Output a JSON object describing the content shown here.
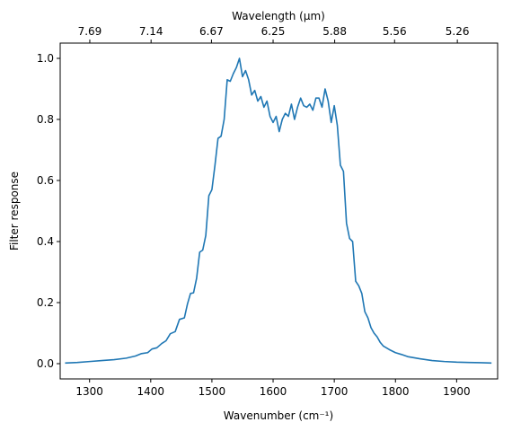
{
  "chart_data": {
    "type": "line",
    "title": "",
    "xlabel": "Wavenumber (cm⁻¹)",
    "ylabel": "Filter response",
    "top_xlabel": "Wavelength (μm)",
    "xlim": [
      1252,
      1967
    ],
    "ylim": [
      -0.05,
      1.05
    ],
    "grid": false,
    "legend": "none",
    "x_ticks": [
      1300,
      1400,
      1500,
      1600,
      1700,
      1800,
      1900
    ],
    "x_tick_labels": [
      "1300",
      "1400",
      "1500",
      "1600",
      "1700",
      "1800",
      "1900"
    ],
    "y_ticks": [
      0.0,
      0.2,
      0.4,
      0.6,
      0.8,
      1.0
    ],
    "y_tick_labels": [
      "0.0",
      "0.2",
      "0.4",
      "0.6",
      "0.8",
      "1.0"
    ],
    "top_ticks_wavelength": [
      7.69,
      7.14,
      6.67,
      6.25,
      5.88,
      5.56,
      5.26
    ],
    "top_tick_labels": [
      "7.69",
      "7.14",
      "6.67",
      "6.25",
      "5.88",
      "5.56",
      "5.26"
    ],
    "line_color": "#1f77b4",
    "series": [
      {
        "x": [
          1260,
          1280,
          1300,
          1320,
          1340,
          1360,
          1375,
          1385,
          1395,
          1402,
          1410,
          1418,
          1425,
          1432,
          1440,
          1447,
          1455,
          1460,
          1465,
          1470,
          1475,
          1480,
          1485,
          1490,
          1495,
          1500,
          1505,
          1510,
          1515,
          1520,
          1525,
          1530,
          1535,
          1540,
          1545,
          1550,
          1555,
          1560,
          1565,
          1570,
          1575,
          1580,
          1585,
          1590,
          1595,
          1600,
          1605,
          1610,
          1615,
          1620,
          1625,
          1630,
          1635,
          1640,
          1645,
          1650,
          1655,
          1660,
          1665,
          1670,
          1675,
          1680,
          1685,
          1690,
          1695,
          1700,
          1705,
          1710,
          1715,
          1720,
          1725,
          1730,
          1735,
          1740,
          1745,
          1750,
          1755,
          1760,
          1765,
          1770,
          1775,
          1780,
          1790,
          1800,
          1810,
          1820,
          1840,
          1860,
          1880,
          1900,
          1920,
          1940,
          1957
        ],
        "y": [
          0.002,
          0.004,
          0.007,
          0.01,
          0.013,
          0.018,
          0.025,
          0.033,
          0.036,
          0.048,
          0.052,
          0.066,
          0.075,
          0.098,
          0.105,
          0.145,
          0.15,
          0.195,
          0.23,
          0.232,
          0.28,
          0.365,
          0.372,
          0.42,
          0.55,
          0.57,
          0.65,
          0.738,
          0.745,
          0.8,
          0.93,
          0.925,
          0.95,
          0.97,
          1.0,
          0.94,
          0.96,
          0.93,
          0.88,
          0.895,
          0.86,
          0.875,
          0.84,
          0.86,
          0.81,
          0.79,
          0.81,
          0.76,
          0.8,
          0.82,
          0.81,
          0.85,
          0.8,
          0.84,
          0.87,
          0.845,
          0.84,
          0.85,
          0.83,
          0.87,
          0.87,
          0.84,
          0.9,
          0.86,
          0.79,
          0.845,
          0.78,
          0.65,
          0.63,
          0.46,
          0.41,
          0.4,
          0.27,
          0.255,
          0.23,
          0.17,
          0.15,
          0.118,
          0.1,
          0.088,
          0.07,
          0.058,
          0.046,
          0.036,
          0.03,
          0.023,
          0.016,
          0.01,
          0.007,
          0.005,
          0.004,
          0.003,
          0.002
        ]
      }
    ]
  }
}
